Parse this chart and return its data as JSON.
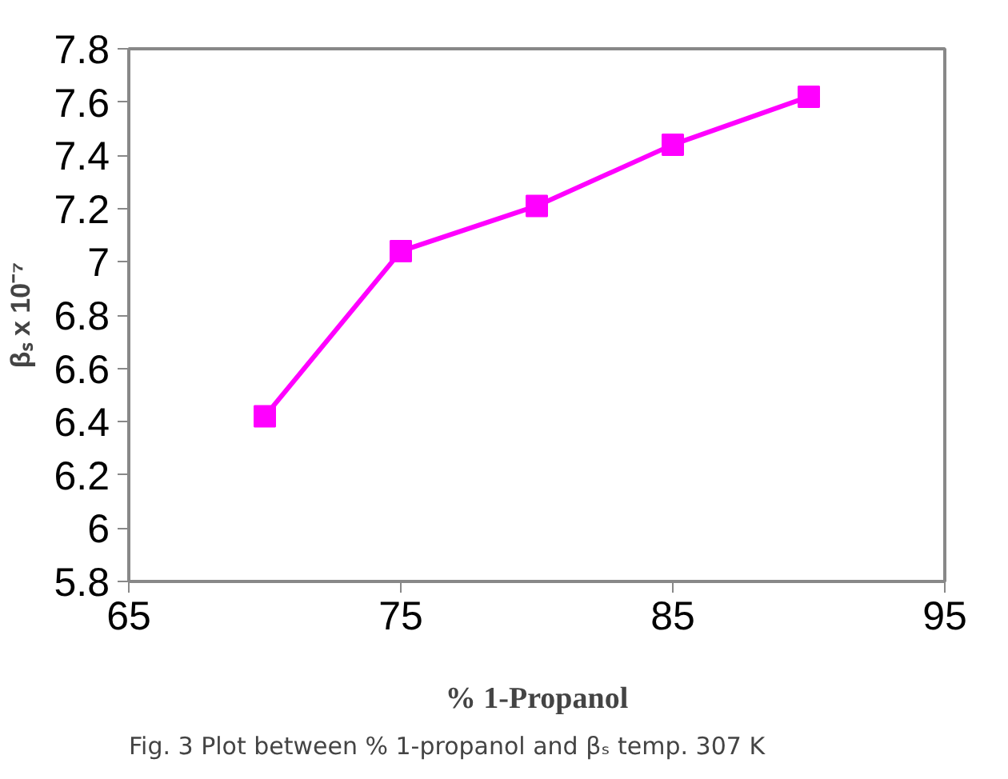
{
  "chart_data": {
    "type": "line",
    "xlabel": "% 1-Propanol",
    "ylabel": "βₛ x 10⁻⁷",
    "x": [
      70,
      75,
      80,
      85,
      90
    ],
    "series": [
      {
        "color": "#ff00ff",
        "values": [
          6.42,
          7.04,
          7.21,
          7.44,
          7.62
        ]
      }
    ],
    "xlim": [
      65,
      95
    ],
    "xticks": [
      65,
      75,
      85,
      95
    ],
    "ylim": [
      5.8,
      7.8
    ],
    "yticks": [
      5.8,
      6,
      6.2,
      6.4,
      6.6,
      6.8,
      7,
      7.2,
      7.4,
      7.6,
      7.8
    ],
    "marker": "square",
    "line_style": "solid",
    "annotations": [
      "Fig. 3 Plot between % 1-propanol and βₛ temp. 307 K"
    ]
  }
}
